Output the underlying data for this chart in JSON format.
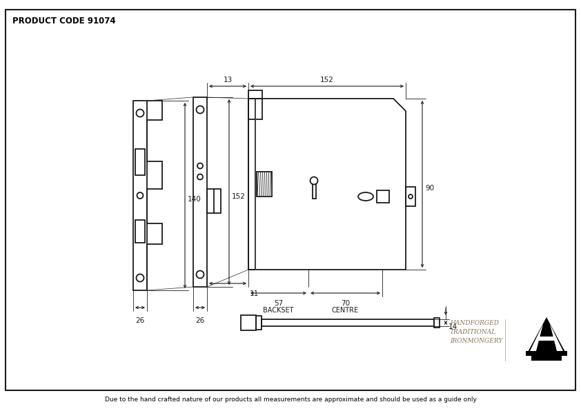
{
  "title": "PRODUCT CODE 91074",
  "footer": "Due to the hand crafted nature of our products all measurements are approximate and should be used as a guide only",
  "brand_line1": "HANDFORGED",
  "brand_line2": "TRADITIONAL",
  "brand_line3": "IRONMONGERY",
  "bg_color": "#ffffff",
  "line_color": "#1a1a1a",
  "dim_color": "#1a1a1a",
  "lw_main": 1.3,
  "lw_dim": 0.8,
  "lw_thin": 0.6,
  "fs_dim": 7.5,
  "fs_label": 7.0,
  "fs_title": 8.5,
  "fs_footer": 6.5
}
